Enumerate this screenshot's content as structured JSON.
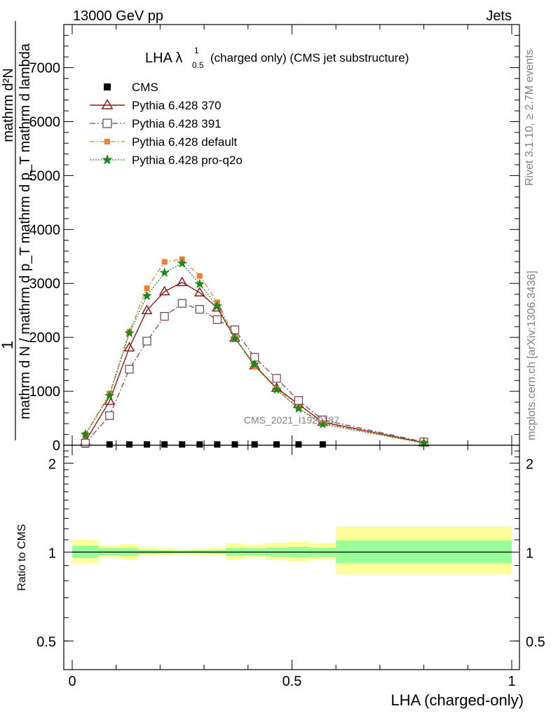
{
  "header": {
    "energy_label": "13000 GeV pp",
    "group_label": "Jets"
  },
  "side": {
    "rivet_label": "Rivet 3.1.10, ≥ 2.7M events",
    "mcplots_label": "mcplots.cern.ch [arXiv:1306.3436]"
  },
  "chart_data": [
    {
      "type": "line",
      "title_main": "LHA λ",
      "title_sup": "1",
      "title_sub": "0.5",
      "title_rest": "(charged only) (CMS jet substructure)",
      "watermark": "CMS_2021_I1920187",
      "ylabel_top": "1",
      "ylabel_frac_num": "mathrm d²N",
      "ylabel_frac_den": "mathrm d N / mathrm d p_T mathrm d p_T mathrm d lambda",
      "ylabel_lines": [
        "mathrm d N / mathrm d p",
        "T",
        "mathrm d p",
        "T",
        "mathrm d lambda",
        "mathrm d",
        "2",
        "N"
      ],
      "xlim": [
        0,
        1
      ],
      "ylim": [
        0,
        7800
      ],
      "yticks": [
        {
          "v": 0,
          "label": "0"
        },
        {
          "v": 1000,
          "label": "1000"
        },
        {
          "v": 2000,
          "label": "2000"
        },
        {
          "v": 3000,
          "label": "3000"
        },
        {
          "v": 4000,
          "label": "4000"
        },
        {
          "v": 5000,
          "label": "5000"
        },
        {
          "v": 6000,
          "label": "6000"
        },
        {
          "v": 7000,
          "label": "7000"
        }
      ],
      "legend": [
        {
          "name": "CMS",
          "marker": "filled-square",
          "color": "#000000"
        },
        {
          "name": "Pythia 6.428 370",
          "marker": "open-triangle",
          "color": "#8b1a1a"
        },
        {
          "name": "Pythia 6.428 391",
          "marker": "open-square",
          "color": "#7a4a5a"
        },
        {
          "name": "Pythia 6.428 default",
          "marker": "filled-square",
          "color": "#f08030"
        },
        {
          "name": "Pythia 6.428 pro-q2o",
          "marker": "star",
          "color": "#1a8a1a"
        }
      ],
      "x": [
        0.03,
        0.085,
        0.13,
        0.17,
        0.21,
        0.25,
        0.29,
        0.33,
        0.37,
        0.415,
        0.465,
        0.515,
        0.57,
        0.8
      ],
      "series": [
        {
          "name": "CMS",
          "values": [
            15,
            15,
            15,
            15,
            15,
            15,
            15,
            15,
            15,
            15,
            15,
            15,
            15,
            null
          ]
        },
        {
          "name": "Pythia 6.428 370",
          "values": [
            70,
            820,
            1810,
            2500,
            2850,
            3020,
            2830,
            2550,
            1990,
            1480,
            1060,
            760,
            430,
            50
          ]
        },
        {
          "name": "Pythia 6.428 391",
          "values": [
            40,
            550,
            1410,
            1930,
            2390,
            2630,
            2520,
            2330,
            2140,
            1630,
            1240,
            830,
            470,
            60
          ]
        },
        {
          "name": "Pythia 6.428 default",
          "values": [
            200,
            960,
            2100,
            2910,
            3400,
            3450,
            3140,
            2650,
            2000,
            1460,
            1050,
            690,
            410,
            40
          ]
        },
        {
          "name": "Pythia 6.428 pro-q2o",
          "values": [
            200,
            920,
            2080,
            2770,
            3200,
            3370,
            2990,
            2580,
            1980,
            1500,
            1030,
            680,
            390,
            40
          ]
        }
      ]
    },
    {
      "type": "area",
      "ylabel": "Ratio to CMS",
      "xlabel": "LHA (charged-only)",
      "xlim": [
        0,
        1
      ],
      "ylim": [
        0.4,
        2.3
      ],
      "log_y": true,
      "yticks": [
        {
          "v": 0.5,
          "label": "0.5"
        },
        {
          "v": 1,
          "label": "1"
        },
        {
          "v": 2,
          "label": "2"
        }
      ],
      "xticks": [
        {
          "v": 0,
          "label": "0"
        },
        {
          "v": 0.5,
          "label": "0.5"
        },
        {
          "v": 1,
          "label": "1"
        }
      ],
      "bands": [
        {
          "x0": 0.0,
          "x1": 0.06,
          "yellow": [
            0.915,
            1.1
          ],
          "green": [
            0.955,
            1.05
          ]
        },
        {
          "x0": 0.06,
          "x1": 0.11,
          "yellow": [
            0.955,
            1.055
          ],
          "green": [
            0.975,
            1.03
          ]
        },
        {
          "x0": 0.11,
          "x1": 0.15,
          "yellow": [
            0.945,
            1.065
          ],
          "green": [
            0.97,
            1.03
          ]
        },
        {
          "x0": 0.15,
          "x1": 0.19,
          "yellow": [
            0.97,
            1.035
          ],
          "green": [
            0.985,
            1.018
          ]
        },
        {
          "x0": 0.19,
          "x1": 0.23,
          "yellow": [
            0.975,
            1.03
          ],
          "green": [
            0.988,
            1.015
          ]
        },
        {
          "x0": 0.23,
          "x1": 0.27,
          "yellow": [
            0.978,
            1.025
          ],
          "green": [
            0.99,
            1.012
          ]
        },
        {
          "x0": 0.27,
          "x1": 0.31,
          "yellow": [
            0.978,
            1.028
          ],
          "green": [
            0.99,
            1.013
          ]
        },
        {
          "x0": 0.31,
          "x1": 0.35,
          "yellow": [
            0.972,
            1.035
          ],
          "green": [
            0.987,
            1.017
          ]
        },
        {
          "x0": 0.35,
          "x1": 0.39,
          "yellow": [
            0.945,
            1.07
          ],
          "green": [
            0.97,
            1.033
          ]
        },
        {
          "x0": 0.39,
          "x1": 0.44,
          "yellow": [
            0.955,
            1.06
          ],
          "green": [
            0.975,
            1.03
          ]
        },
        {
          "x0": 0.44,
          "x1": 0.49,
          "yellow": [
            0.94,
            1.075
          ],
          "green": [
            0.965,
            1.038
          ]
        },
        {
          "x0": 0.49,
          "x1": 0.54,
          "yellow": [
            0.93,
            1.085
          ],
          "green": [
            0.96,
            1.042
          ]
        },
        {
          "x0": 0.54,
          "x1": 0.6,
          "yellow": [
            0.94,
            1.075
          ],
          "green": [
            0.965,
            1.035
          ]
        },
        {
          "x0": 0.6,
          "x1": 1.0,
          "yellow": [
            0.84,
            1.22
          ],
          "green": [
            0.915,
            1.095
          ]
        }
      ],
      "reference": 1,
      "band_colors": {
        "yellow": "#ffff99",
        "green": "#99ff99"
      }
    }
  ]
}
